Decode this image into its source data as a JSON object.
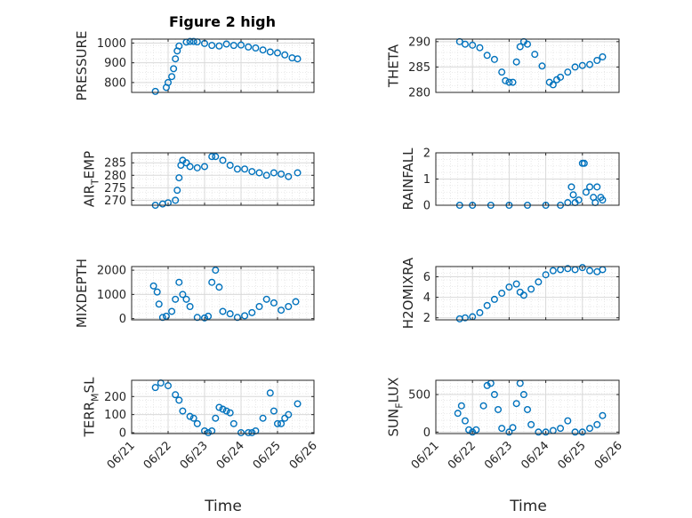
{
  "figure": {
    "title": "Figure 2 high",
    "xlabel": "Time",
    "colors": {
      "marker": "#0072BD",
      "grid": "#d9d9d9",
      "axes": "#262626"
    }
  },
  "chart_data": [
    {
      "type": "scatter",
      "ylabel": "PRESSURE",
      "ylabel_main": "PRESSURE",
      "ylabel_sub": "",
      "ylabel_rest": "",
      "xlim": [
        "06/21",
        "06/26"
      ],
      "ylim": [
        750,
        1020
      ],
      "yticks": [
        800,
        900,
        1000
      ],
      "x_tick_labels": [
        "06/21",
        "06/22",
        "06/23",
        "06/24",
        "06/25",
        "06/26"
      ],
      "grid": true,
      "x": [
        0.65,
        0.95,
        1.0,
        1.1,
        1.15,
        1.2,
        1.25,
        1.3,
        1.5,
        1.6,
        1.7,
        1.8,
        2.0,
        2.2,
        2.4,
        2.6,
        2.8,
        3.0,
        3.2,
        3.4,
        3.6,
        3.8,
        4.0,
        4.2,
        4.4,
        4.55
      ],
      "y": [
        755,
        775,
        800,
        830,
        870,
        920,
        960,
        985,
        1005,
        1008,
        1008,
        1006,
        998,
        988,
        985,
        995,
        988,
        990,
        980,
        975,
        965,
        955,
        950,
        940,
        925,
        920
      ]
    },
    {
      "type": "scatter",
      "ylabel": "THETA",
      "ylabel_main": "THETA",
      "ylabel_sub": "",
      "ylabel_rest": "",
      "xlim": [
        "06/21",
        "06/26"
      ],
      "ylim": [
        280,
        290.5
      ],
      "yticks": [
        280,
        285,
        290
      ],
      "x_tick_labels": [
        "06/21",
        "06/22",
        "06/23",
        "06/24",
        "06/25",
        "06/26"
      ],
      "grid": true,
      "x": [
        0.65,
        0.8,
        1.0,
        1.2,
        1.4,
        1.6,
        1.8,
        1.9,
        2.0,
        2.1,
        2.2,
        2.3,
        2.4,
        2.5,
        2.7,
        2.9,
        3.1,
        3.2,
        3.3,
        3.4,
        3.6,
        3.8,
        4.0,
        4.2,
        4.4,
        4.55
      ],
      "y": [
        290,
        289.5,
        289.3,
        288.8,
        287.3,
        286.5,
        284.0,
        282.3,
        282.0,
        282.0,
        286.0,
        289.0,
        290.0,
        289.5,
        287.5,
        285.2,
        282.0,
        281.5,
        282.5,
        283.0,
        284.0,
        285.0,
        285.3,
        285.5,
        286.3,
        287.0
      ]
    },
    {
      "type": "scatter",
      "ylabel": "AIR_TEMP",
      "ylabel_main": "AIR",
      "ylabel_sub": "T",
      "ylabel_rest": "EMP",
      "xlim": [
        "06/21",
        "06/26"
      ],
      "ylim": [
        268,
        289
      ],
      "yticks": [
        270,
        275,
        280,
        285
      ],
      "x_tick_labels": [
        "06/21",
        "06/22",
        "06/23",
        "06/24",
        "06/25",
        "06/26"
      ],
      "grid": true,
      "x": [
        0.65,
        0.85,
        1.0,
        1.2,
        1.25,
        1.3,
        1.35,
        1.4,
        1.5,
        1.6,
        1.8,
        2.0,
        2.2,
        2.3,
        2.5,
        2.7,
        2.9,
        3.1,
        3.3,
        3.5,
        3.7,
        3.9,
        4.1,
        4.3,
        4.55
      ],
      "y": [
        268,
        268.5,
        269,
        270,
        274,
        279,
        284,
        286,
        285,
        283.5,
        283,
        283.5,
        287.5,
        287.5,
        286,
        284,
        282.5,
        282.5,
        281.5,
        281,
        280,
        281,
        280.5,
        279.5,
        281
      ]
    },
    {
      "type": "scatter",
      "ylabel": "RAINFALL",
      "ylabel_main": "RAINFALL",
      "ylabel_sub": "",
      "ylabel_rest": "",
      "xlim": [
        "06/21",
        "06/26"
      ],
      "ylim": [
        0,
        2
      ],
      "yticks": [
        0,
        1,
        2
      ],
      "x_tick_labels": [
        "06/21",
        "06/22",
        "06/23",
        "06/24",
        "06/25",
        "06/26"
      ],
      "grid": true,
      "x": [
        0.65,
        1.0,
        1.5,
        2.0,
        2.5,
        3.0,
        3.4,
        3.6,
        3.7,
        3.75,
        3.8,
        3.9,
        4.0,
        4.05,
        4.1,
        4.2,
        4.3,
        4.35,
        4.4,
        4.5,
        4.55
      ],
      "y": [
        0,
        0,
        0,
        0,
        0,
        0,
        0,
        0.1,
        0.7,
        0.4,
        0.1,
        0.2,
        1.6,
        1.6,
        0.5,
        0.7,
        0.3,
        0.1,
        0.7,
        0.3,
        0.2
      ]
    },
    {
      "type": "scatter",
      "ylabel": "MIXDEPTH",
      "ylabel_main": "MIXDEPTH",
      "ylabel_sub": "",
      "ylabel_rest": "",
      "xlim": [
        "06/21",
        "06/26"
      ],
      "ylim": [
        -50,
        2150
      ],
      "yticks": [
        0,
        1000,
        2000
      ],
      "x_tick_labels": [
        "06/21",
        "06/22",
        "06/23",
        "06/24",
        "06/25",
        "06/26"
      ],
      "grid": true,
      "x": [
        0.6,
        0.7,
        0.75,
        0.85,
        0.95,
        1.1,
        1.2,
        1.3,
        1.4,
        1.5,
        1.6,
        1.8,
        2.0,
        2.1,
        2.2,
        2.3,
        2.4,
        2.5,
        2.7,
        2.9,
        3.1,
        3.3,
        3.5,
        3.7,
        3.9,
        4.1,
        4.3,
        4.5
      ],
      "y": [
        1350,
        1100,
        600,
        50,
        100,
        300,
        800,
        1500,
        1000,
        800,
        500,
        50,
        30,
        100,
        1500,
        2000,
        1300,
        300,
        200,
        50,
        120,
        250,
        500,
        800,
        650,
        350,
        500,
        700
      ]
    },
    {
      "type": "scatter",
      "ylabel": "H2OMIXRA",
      "ylabel_main": "H2OMIXRA",
      "ylabel_sub": "",
      "ylabel_rest": "",
      "xlim": [
        "06/21",
        "06/26"
      ],
      "ylim": [
        1.8,
        7
      ],
      "yticks": [
        2,
        4,
        6
      ],
      "x_tick_labels": [
        "06/21",
        "06/22",
        "06/23",
        "06/24",
        "06/25",
        "06/26"
      ],
      "grid": true,
      "x": [
        0.65,
        0.8,
        1.0,
        1.2,
        1.4,
        1.6,
        1.8,
        2.0,
        2.2,
        2.3,
        2.4,
        2.6,
        2.8,
        3.0,
        3.2,
        3.4,
        3.6,
        3.8,
        4.0,
        4.2,
        4.4,
        4.55
      ],
      "y": [
        1.9,
        2.0,
        2.1,
        2.5,
        3.2,
        3.8,
        4.4,
        5.0,
        5.3,
        4.5,
        4.2,
        4.8,
        5.5,
        6.2,
        6.6,
        6.7,
        6.8,
        6.7,
        6.9,
        6.6,
        6.5,
        6.7
      ]
    },
    {
      "type": "scatter",
      "ylabel": "TERR_MSL",
      "ylabel_main": "TERR",
      "ylabel_sub": "M",
      "ylabel_rest": "SL",
      "xlim": [
        "06/21",
        "06/26"
      ],
      "ylim": [
        -5,
        290
      ],
      "yticks": [
        0,
        100,
        200
      ],
      "x_tick_labels": [
        "06/21",
        "06/22",
        "06/23",
        "06/24",
        "06/25",
        "06/26"
      ],
      "grid": true,
      "x": [
        0.65,
        0.8,
        1.0,
        1.2,
        1.3,
        1.4,
        1.6,
        1.7,
        1.8,
        2.0,
        2.1,
        2.2,
        2.3,
        2.4,
        2.5,
        2.6,
        2.7,
        2.8,
        3.0,
        3.2,
        3.3,
        3.4,
        3.6,
        3.8,
        3.9,
        4.0,
        4.1,
        4.2,
        4.3,
        4.55
      ],
      "y": [
        250,
        275,
        260,
        210,
        180,
        120,
        90,
        80,
        50,
        10,
        0,
        10,
        80,
        140,
        130,
        120,
        110,
        50,
        0,
        0,
        0,
        10,
        80,
        220,
        120,
        50,
        50,
        80,
        100,
        160
      ]
    },
    {
      "type": "scatter",
      "ylabel": "SUN_FLUX",
      "ylabel_main": "SUN",
      "ylabel_sub": "F",
      "ylabel_rest": "LUX",
      "xlim": [
        "06/21",
        "06/26"
      ],
      "ylim": [
        -20,
        690
      ],
      "yticks": [
        0,
        500
      ],
      "x_tick_labels": [
        "06/21",
        "06/22",
        "06/23",
        "06/24",
        "06/25",
        "06/26"
      ],
      "grid": true,
      "x": [
        0.6,
        0.7,
        0.8,
        0.9,
        1.0,
        1.1,
        1.3,
        1.4,
        1.5,
        1.6,
        1.7,
        1.8,
        2.0,
        2.1,
        2.2,
        2.3,
        2.4,
        2.5,
        2.6,
        2.8,
        3.0,
        3.2,
        3.4,
        3.6,
        3.8,
        4.0,
        4.2,
        4.4,
        4.55
      ],
      "y": [
        250,
        350,
        150,
        30,
        0,
        30,
        350,
        620,
        650,
        500,
        300,
        50,
        0,
        60,
        380,
        650,
        500,
        300,
        100,
        0,
        0,
        20,
        50,
        150,
        0,
        0,
        50,
        100,
        220
      ]
    }
  ]
}
